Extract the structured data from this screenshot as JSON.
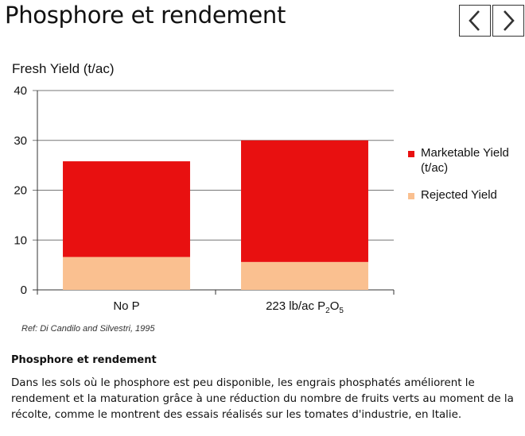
{
  "header": {
    "title": "Phosphore et rendement",
    "prev_icon": "chevron-left-icon",
    "next_icon": "chevron-right-icon"
  },
  "chart_data": {
    "type": "bar",
    "stacked": true,
    "ylabel": "Fresh Yield (t/ac)",
    "ylim": [
      0,
      40
    ],
    "yticks": [
      0,
      10,
      20,
      30,
      40
    ],
    "grid": true,
    "legend_position": "right",
    "categories": [
      "No P",
      "223 lb/ac P2O5"
    ],
    "category_labels": [
      {
        "text": "No P"
      },
      {
        "text": "223 lb/ac P",
        "sub1": "2",
        "mid": "O",
        "sub2": "5"
      }
    ],
    "series": [
      {
        "name": "Rejected Yield",
        "color": "#fac090",
        "values": [
          6.6,
          5.6
        ]
      },
      {
        "name": "Marketable Yield (t/ac)",
        "color": "#e81010",
        "values": [
          19.2,
          24.4
        ]
      }
    ],
    "legend": [
      {
        "lines": [
          "Marketable Yield",
          "(t/ac)"
        ],
        "color": "#e81010"
      },
      {
        "lines": [
          "Rejected Yield"
        ],
        "color": "#fac090"
      }
    ],
    "source": "Ref: Di Candilo and Silvestri, 1995"
  },
  "content": {
    "heading": "Phosphore et rendement",
    "paragraph": "Dans les sols où le phosphore est peu disponible, les engrais phosphatés améliorent le rendement et la maturation grâce à une réduction du nombre de fruits verts au moment de la récolte, comme le montrent des essais réalisés sur les tomates d'industrie, en Italie."
  }
}
